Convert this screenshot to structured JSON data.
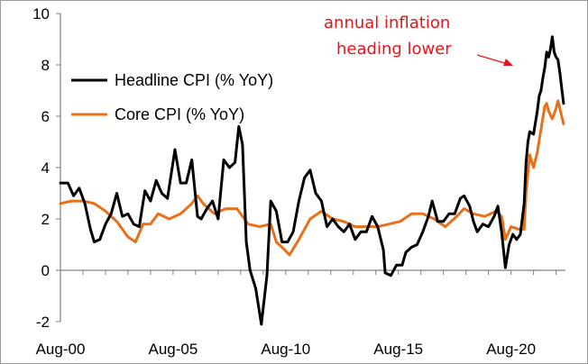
{
  "chart_data": {
    "type": "line",
    "title": "",
    "xlabel": "",
    "ylabel": "",
    "ylim": [
      -2,
      10
    ],
    "yticks": [
      -2,
      0,
      2,
      4,
      6,
      8,
      10
    ],
    "xticks": [
      "Aug-00",
      "Aug-05",
      "Aug-10",
      "Aug-15",
      "Aug-20"
    ],
    "xlim": [
      "2000-08",
      "2023-01"
    ],
    "grid": false,
    "legend": "top-left",
    "annotation": {
      "lines": [
        "annual inflation",
        "heading lower"
      ],
      "color": "#e8141b",
      "points_to": [
        "2022-02",
        8.0
      ]
    },
    "series": [
      {
        "name": "Headline CPI (% YoY)",
        "color": "#000000",
        "points": [
          [
            "2000-08",
            3.4
          ],
          [
            "2000-12",
            3.4
          ],
          [
            "2001-03",
            2.9
          ],
          [
            "2001-06",
            3.2
          ],
          [
            "2001-09",
            2.6
          ],
          [
            "2001-12",
            1.6
          ],
          [
            "2002-02",
            1.1
          ],
          [
            "2002-05",
            1.2
          ],
          [
            "2002-08",
            1.8
          ],
          [
            "2002-11",
            2.2
          ],
          [
            "2003-02",
            3.0
          ],
          [
            "2003-05",
            2.1
          ],
          [
            "2003-08",
            2.2
          ],
          [
            "2003-11",
            1.8
          ],
          [
            "2004-02",
            1.7
          ],
          [
            "2004-05",
            3.1
          ],
          [
            "2004-08",
            2.7
          ],
          [
            "2004-11",
            3.5
          ],
          [
            "2005-02",
            3.0
          ],
          [
            "2005-05",
            2.8
          ],
          [
            "2005-09",
            4.7
          ],
          [
            "2005-12",
            3.4
          ],
          [
            "2006-03",
            3.4
          ],
          [
            "2006-06",
            4.3
          ],
          [
            "2006-09",
            2.1
          ],
          [
            "2006-11",
            2.0
          ],
          [
            "2007-02",
            2.4
          ],
          [
            "2007-05",
            2.7
          ],
          [
            "2007-08",
            2.0
          ],
          [
            "2007-11",
            4.3
          ],
          [
            "2008-02",
            4.0
          ],
          [
            "2008-05",
            4.2
          ],
          [
            "2008-07",
            5.6
          ],
          [
            "2008-09",
            4.9
          ],
          [
            "2008-11",
            1.1
          ],
          [
            "2009-01",
            0.0
          ],
          [
            "2009-04",
            -0.7
          ],
          [
            "2009-07",
            -2.1
          ],
          [
            "2009-10",
            -0.2
          ],
          [
            "2009-12",
            2.7
          ],
          [
            "2010-03",
            2.3
          ],
          [
            "2010-06",
            1.1
          ],
          [
            "2010-09",
            1.1
          ],
          [
            "2010-12",
            1.5
          ],
          [
            "2011-03",
            2.7
          ],
          [
            "2011-06",
            3.6
          ],
          [
            "2011-09",
            3.9
          ],
          [
            "2011-12",
            3.0
          ],
          [
            "2012-03",
            2.7
          ],
          [
            "2012-06",
            1.7
          ],
          [
            "2012-09",
            2.0
          ],
          [
            "2012-12",
            1.7
          ],
          [
            "2013-03",
            1.5
          ],
          [
            "2013-06",
            1.8
          ],
          [
            "2013-09",
            1.2
          ],
          [
            "2013-12",
            1.5
          ],
          [
            "2014-03",
            1.5
          ],
          [
            "2014-06",
            2.1
          ],
          [
            "2014-09",
            1.7
          ],
          [
            "2014-12",
            0.8
          ],
          [
            "2015-01",
            -0.1
          ],
          [
            "2015-04",
            -0.2
          ],
          [
            "2015-07",
            0.2
          ],
          [
            "2015-10",
            0.2
          ],
          [
            "2015-12",
            0.7
          ],
          [
            "2016-03",
            0.9
          ],
          [
            "2016-06",
            1.0
          ],
          [
            "2016-09",
            1.5
          ],
          [
            "2016-12",
            2.1
          ],
          [
            "2017-02",
            2.7
          ],
          [
            "2017-05",
            1.9
          ],
          [
            "2017-08",
            1.9
          ],
          [
            "2017-11",
            2.2
          ],
          [
            "2018-02",
            2.2
          ],
          [
            "2018-05",
            2.8
          ],
          [
            "2018-07",
            2.9
          ],
          [
            "2018-10",
            2.5
          ],
          [
            "2018-12",
            1.9
          ],
          [
            "2019-02",
            1.5
          ],
          [
            "2019-05",
            1.8
          ],
          [
            "2019-08",
            1.7
          ],
          [
            "2019-11",
            2.1
          ],
          [
            "2020-01",
            2.5
          ],
          [
            "2020-03",
            1.5
          ],
          [
            "2020-05",
            0.1
          ],
          [
            "2020-07",
            1.0
          ],
          [
            "2020-09",
            1.4
          ],
          [
            "2020-11",
            1.2
          ],
          [
            "2021-01",
            1.4
          ],
          [
            "2021-03",
            2.6
          ],
          [
            "2021-04",
            4.2
          ],
          [
            "2021-05",
            5.0
          ],
          [
            "2021-06",
            5.4
          ],
          [
            "2021-08",
            5.3
          ],
          [
            "2021-10",
            6.2
          ],
          [
            "2021-11",
            6.8
          ],
          [
            "2021-12",
            7.0
          ],
          [
            "2022-01",
            7.5
          ],
          [
            "2022-02",
            7.9
          ],
          [
            "2022-03",
            8.5
          ],
          [
            "2022-04",
            8.3
          ],
          [
            "2022-05",
            8.6
          ],
          [
            "2022-06",
            9.1
          ],
          [
            "2022-07",
            8.5
          ],
          [
            "2022-08",
            8.3
          ],
          [
            "2022-09",
            8.2
          ],
          [
            "2022-10",
            7.7
          ],
          [
            "2022-11",
            7.1
          ],
          [
            "2022-12",
            6.5
          ]
        ]
      },
      {
        "name": "Core CPI (% YoY)",
        "color": "#e8701a",
        "points": [
          [
            "2000-08",
            2.6
          ],
          [
            "2001-02",
            2.7
          ],
          [
            "2001-08",
            2.7
          ],
          [
            "2002-02",
            2.6
          ],
          [
            "2002-08",
            2.3
          ],
          [
            "2003-02",
            1.9
          ],
          [
            "2003-08",
            1.3
          ],
          [
            "2003-12",
            1.1
          ],
          [
            "2004-04",
            1.8
          ],
          [
            "2004-08",
            1.8
          ],
          [
            "2004-12",
            2.2
          ],
          [
            "2005-06",
            2.0
          ],
          [
            "2005-12",
            2.2
          ],
          [
            "2006-06",
            2.6
          ],
          [
            "2006-09",
            2.9
          ],
          [
            "2006-12",
            2.6
          ],
          [
            "2007-06",
            2.2
          ],
          [
            "2007-12",
            2.4
          ],
          [
            "2008-06",
            2.4
          ],
          [
            "2008-12",
            1.8
          ],
          [
            "2009-06",
            1.7
          ],
          [
            "2009-12",
            1.8
          ],
          [
            "2010-03",
            1.1
          ],
          [
            "2010-06",
            0.9
          ],
          [
            "2010-10",
            0.6
          ],
          [
            "2011-03",
            1.2
          ],
          [
            "2011-09",
            2.0
          ],
          [
            "2012-03",
            2.3
          ],
          [
            "2012-09",
            2.0
          ],
          [
            "2013-03",
            1.9
          ],
          [
            "2013-09",
            1.7
          ],
          [
            "2014-03",
            1.7
          ],
          [
            "2014-09",
            1.7
          ],
          [
            "2015-03",
            1.8
          ],
          [
            "2015-09",
            1.9
          ],
          [
            "2016-03",
            2.2
          ],
          [
            "2016-09",
            2.2
          ],
          [
            "2017-03",
            2.0
          ],
          [
            "2017-09",
            1.7
          ],
          [
            "2018-03",
            2.1
          ],
          [
            "2018-07",
            2.4
          ],
          [
            "2018-12",
            2.2
          ],
          [
            "2019-06",
            2.1
          ],
          [
            "2019-12",
            2.3
          ],
          [
            "2020-03",
            2.1
          ],
          [
            "2020-05",
            1.2
          ],
          [
            "2020-08",
            1.7
          ],
          [
            "2020-12",
            1.6
          ],
          [
            "2021-03",
            1.6
          ],
          [
            "2021-04",
            3.0
          ],
          [
            "2021-05",
            3.8
          ],
          [
            "2021-06",
            4.5
          ],
          [
            "2021-08",
            4.0
          ],
          [
            "2021-10",
            4.6
          ],
          [
            "2021-12",
            5.5
          ],
          [
            "2022-02",
            6.4
          ],
          [
            "2022-03",
            6.5
          ],
          [
            "2022-04",
            6.2
          ],
          [
            "2022-06",
            5.9
          ],
          [
            "2022-08",
            6.3
          ],
          [
            "2022-09",
            6.6
          ],
          [
            "2022-10",
            6.3
          ],
          [
            "2022-11",
            6.0
          ],
          [
            "2022-12",
            5.7
          ]
        ]
      }
    ]
  }
}
